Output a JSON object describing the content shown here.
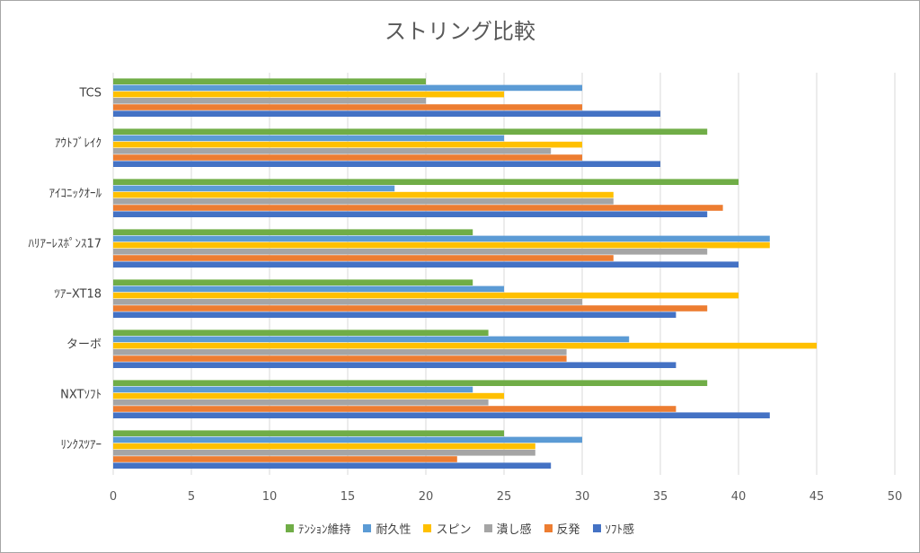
{
  "chart_data": {
    "type": "bar",
    "orientation": "horizontal",
    "title": "ストリング比較",
    "xlabel": "",
    "ylabel": "",
    "xlim": [
      0,
      50
    ],
    "x_ticks": [
      0,
      5,
      10,
      15,
      20,
      25,
      30,
      35,
      40,
      45,
      50
    ],
    "grid": true,
    "legend_position": "bottom",
    "categories": [
      "TCS",
      "ｱｳﾄﾌﾞﾚｲｸ",
      "ｱｲｺﾆｯｸｵｰﾙ",
      "ﾊﾘｱｰﾚｽﾎﾟﾝｽ17",
      "ﾂｱｰXT18",
      "ターボ",
      "NXTｿﾌﾄ",
      "ﾘﾝｸｽﾂｱｰ"
    ],
    "series": [
      {
        "name": "ﾃﾝｼｮﾝ維持",
        "color": "#70ad47",
        "values": [
          20,
          38,
          40,
          23,
          23,
          24,
          38,
          25
        ]
      },
      {
        "name": "耐久性",
        "color": "#5b9bd5",
        "values": [
          30,
          25,
          18,
          42,
          25,
          33,
          23,
          30
        ]
      },
      {
        "name": "スピン",
        "color": "#ffc000",
        "values": [
          25,
          30,
          32,
          42,
          40,
          45,
          25,
          27
        ]
      },
      {
        "name": "潰し感",
        "color": "#a5a5a5",
        "values": [
          20,
          28,
          32,
          38,
          30,
          29,
          24,
          27
        ]
      },
      {
        "name": "反発",
        "color": "#ed7d31",
        "values": [
          30,
          30,
          39,
          32,
          38,
          29,
          36,
          22
        ]
      },
      {
        "name": "ｿﾌﾄ感",
        "color": "#4472c4",
        "values": [
          35,
          35,
          38,
          40,
          36,
          36,
          42,
          28
        ]
      }
    ]
  }
}
